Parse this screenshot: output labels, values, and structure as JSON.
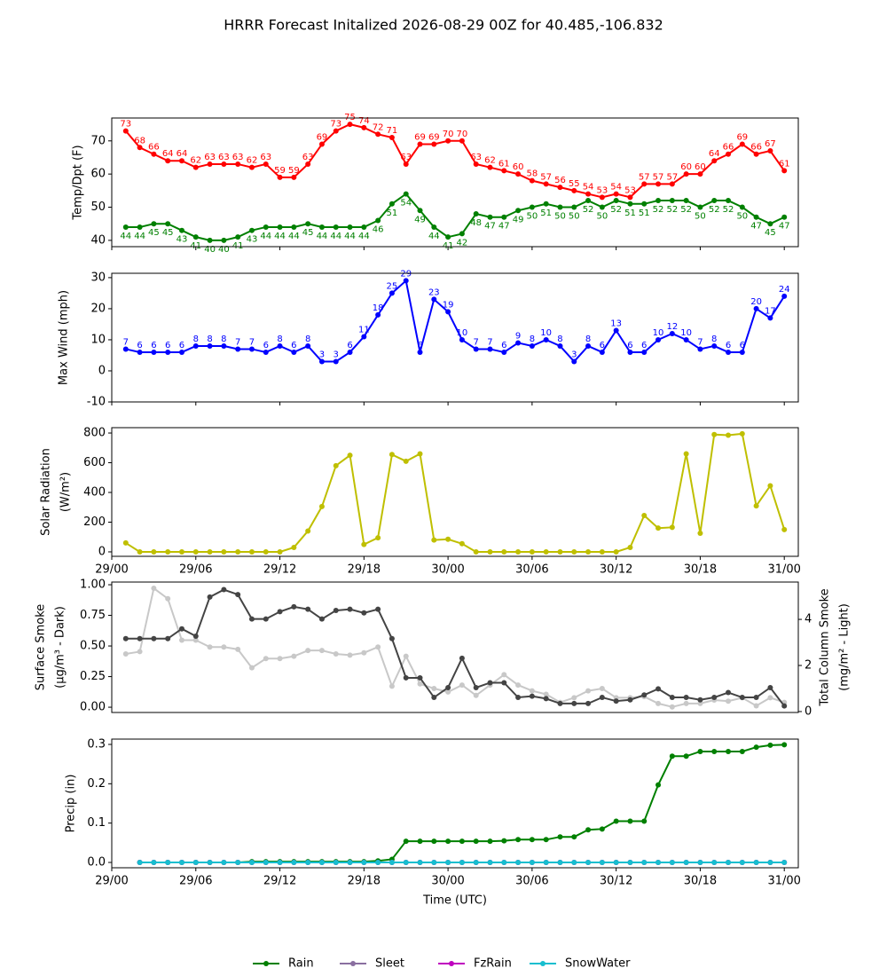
{
  "title": "HRRR Forecast Initalized 2026-08-29 00Z for 40.485,-106.832",
  "chart_data": [
    {
      "type": "line",
      "ylabel": [
        "Temp/Dpt (F)"
      ],
      "x": [
        1,
        2,
        3,
        4,
        5,
        6,
        7,
        8,
        9,
        10,
        11,
        12,
        13,
        14,
        15,
        16,
        17,
        18,
        19,
        20,
        21,
        22,
        23,
        24,
        25,
        26,
        27,
        28,
        29,
        30,
        31,
        32,
        33,
        34,
        35,
        36,
        37,
        38,
        39,
        40,
        41,
        42,
        43,
        44,
        45,
        46,
        47,
        48
      ],
      "xlim": [
        0,
        49
      ],
      "ylim": [
        38.1,
        76.9
      ],
      "yticks": [
        40,
        50,
        60,
        70
      ],
      "series": [
        {
          "color": "#ff0000",
          "data_labels": "above",
          "values": [
            73,
            68,
            66,
            64,
            64,
            62,
            63,
            63,
            63,
            62,
            63,
            59,
            59,
            63,
            69,
            73,
            75,
            74,
            72,
            71,
            63,
            69,
            69,
            70,
            70,
            63,
            62,
            61,
            60,
            58,
            57,
            56,
            55,
            54,
            53,
            54,
            53,
            57,
            57,
            57,
            60,
            60,
            64,
            66,
            69,
            66,
            67,
            61
          ]
        },
        {
          "color": "#008000",
          "data_labels": "below",
          "values": [
            44,
            44,
            45,
            45,
            43,
            41,
            40,
            40,
            41,
            43,
            44,
            44,
            44,
            45,
            44,
            44,
            44,
            44,
            46,
            51,
            54,
            49,
            44,
            41,
            42,
            48,
            47,
            47,
            49,
            50,
            51,
            50,
            50,
            52,
            50,
            52,
            51,
            51,
            52,
            52,
            52,
            50,
            52,
            52,
            50,
            47,
            45,
            47
          ]
        }
      ]
    },
    {
      "type": "line",
      "ylabel": [
        "Max Wind (mph)"
      ],
      "x": [
        1,
        2,
        3,
        4,
        5,
        6,
        7,
        8,
        9,
        10,
        11,
        12,
        13,
        14,
        15,
        16,
        17,
        18,
        19,
        20,
        21,
        22,
        23,
        24,
        25,
        26,
        27,
        28,
        29,
        30,
        31,
        32,
        33,
        34,
        35,
        36,
        37,
        38,
        39,
        40,
        41,
        42,
        43,
        44,
        45,
        46,
        47,
        48
      ],
      "xlim": [
        0,
        49
      ],
      "ylim": [
        -10,
        31.4
      ],
      "yticks": [
        -10,
        0,
        10,
        20,
        30
      ],
      "series": [
        {
          "color": "#0000ff",
          "data_labels": "above",
          "values": [
            7,
            6,
            6,
            6,
            6,
            8,
            8,
            8,
            7,
            7,
            6,
            8,
            6,
            8,
            3,
            3,
            6,
            11,
            18,
            25,
            29,
            6,
            23,
            19,
            10,
            7,
            7,
            6,
            9,
            8,
            10,
            8,
            3,
            8,
            6,
            13,
            6,
            6,
            10,
            12,
            10,
            7,
            8,
            6,
            6,
            20,
            17,
            24
          ]
        }
      ]
    },
    {
      "type": "line",
      "ylabel": [
        "Solar Radiation",
        "(W/m²)"
      ],
      "x": [
        1,
        2,
        3,
        4,
        5,
        6,
        7,
        8,
        9,
        10,
        11,
        12,
        13,
        14,
        15,
        16,
        17,
        18,
        19,
        20,
        21,
        22,
        23,
        24,
        25,
        26,
        27,
        28,
        29,
        30,
        31,
        32,
        33,
        34,
        35,
        36,
        37,
        38,
        39,
        40,
        41,
        42,
        43,
        44,
        45,
        46,
        47,
        48
      ],
      "xlim": [
        0,
        49
      ],
      "ylim": [
        -30,
        836
      ],
      "yticks": [
        0,
        200,
        400,
        600,
        800
      ],
      "xticks": [
        {
          "value": 0,
          "label": "29/00"
        },
        {
          "value": 6,
          "label": "29/06"
        },
        {
          "value": 12,
          "label": "29/12"
        },
        {
          "value": 18,
          "label": "29/18"
        },
        {
          "value": 24,
          "label": "30/00"
        },
        {
          "value": 30,
          "label": "30/06"
        },
        {
          "value": 36,
          "label": "30/12"
        },
        {
          "value": 42,
          "label": "30/18"
        },
        {
          "value": 48,
          "label": "31/00"
        }
      ],
      "series": [
        {
          "color": "#bfbf00",
          "values": [
            60,
            0,
            0,
            0,
            0,
            0,
            0,
            0,
            0,
            0,
            0,
            0,
            30,
            140,
            305,
            580,
            650,
            50,
            95,
            655,
            610,
            660,
            80,
            85,
            55,
            0,
            0,
            0,
            0,
            0,
            0,
            0,
            0,
            0,
            0,
            0,
            30,
            245,
            160,
            165,
            660,
            125,
            790,
            785,
            795,
            310,
            445,
            150
          ]
        }
      ]
    },
    {
      "type": "line",
      "ylabel": [
        "Surface Smoke",
        "(μg/m³ - Dark)"
      ],
      "y2label": [
        "Total Column Smoke",
        "(mg/m² - Light)"
      ],
      "x": [
        1,
        2,
        3,
        4,
        5,
        6,
        7,
        8,
        9,
        10,
        11,
        12,
        13,
        14,
        15,
        16,
        17,
        18,
        19,
        20,
        21,
        22,
        23,
        24,
        25,
        26,
        27,
        28,
        29,
        30,
        31,
        32,
        33,
        34,
        35,
        36,
        37,
        38,
        39,
        40,
        41,
        42,
        43,
        44,
        45,
        46,
        47,
        48
      ],
      "xlim": [
        0,
        49
      ],
      "ylim": [
        -0.043,
        1.022
      ],
      "yticks": [
        {
          "value": 0,
          "label": "0.00"
        },
        0.25,
        {
          "value": 0.5,
          "label": "0.50"
        },
        0.75,
        {
          "value": 1,
          "label": "1.00"
        }
      ],
      "y2lim": [
        -0.04,
        5.62
      ],
      "y2ticks": [
        0,
        2,
        4
      ],
      "series": [
        {
          "color": "#c8c8c8",
          "axis": "y2",
          "values": [
            2.5,
            2.6,
            5.35,
            4.9,
            3.1,
            3.1,
            2.8,
            2.8,
            2.7,
            1.9,
            2.3,
            2.3,
            2.4,
            2.65,
            2.65,
            2.5,
            2.45,
            2.55,
            2.8,
            1.1,
            2.4,
            1.2,
            1.0,
            0.85,
            1.15,
            0.7,
            1.15,
            1.6,
            1.15,
            0.9,
            0.75,
            0.4,
            0.6,
            0.9,
            1.0,
            0.6,
            0.6,
            0.65,
            0.35,
            0.2,
            0.35,
            0.35,
            0.5,
            0.45,
            0.6,
            0.25,
            0.6,
            0.4
          ]
        },
        {
          "color": "#444444",
          "values": [
            0.56,
            0.56,
            0.56,
            0.56,
            0.64,
            0.58,
            0.9,
            0.96,
            0.92,
            0.72,
            0.72,
            0.78,
            0.82,
            0.8,
            0.72,
            0.79,
            0.8,
            0.77,
            0.8,
            0.56,
            0.24,
            0.24,
            0.08,
            0.16,
            0.4,
            0.16,
            0.2,
            0.2,
            0.08,
            0.09,
            0.07,
            0.03,
            0.03,
            0.03,
            0.08,
            0.05,
            0.06,
            0.1,
            0.15,
            0.08,
            0.08,
            0.06,
            0.08,
            0.12,
            0.08,
            0.08,
            0.16,
            0.01
          ]
        }
      ]
    },
    {
      "type": "line",
      "ylabel": [
        "Precip (in)"
      ],
      "xlabel": "Time (UTC)",
      "legend": "bottom",
      "x": [
        1,
        2,
        3,
        4,
        5,
        6,
        7,
        8,
        9,
        10,
        11,
        12,
        13,
        14,
        15,
        16,
        17,
        18,
        19,
        20,
        21,
        22,
        23,
        24,
        25,
        26,
        27,
        28,
        29,
        30,
        31,
        32,
        33,
        34,
        35,
        36,
        37,
        38,
        39,
        40,
        41,
        42,
        43,
        44,
        45,
        46,
        47,
        48
      ],
      "xlim": [
        0,
        49
      ],
      "ylim": [
        -0.0135,
        0.3135
      ],
      "yticks": [
        {
          "value": 0,
          "label": "0.0"
        },
        0.1,
        0.2,
        0.3
      ],
      "xticks": [
        {
          "value": 0,
          "label": "29/00"
        },
        {
          "value": 6,
          "label": "29/06"
        },
        {
          "value": 12,
          "label": "29/12"
        },
        {
          "value": 18,
          "label": "29/18"
        },
        {
          "value": 24,
          "label": "30/00"
        },
        {
          "value": 30,
          "label": "30/06"
        },
        {
          "value": 36,
          "label": "30/12"
        },
        {
          "value": 42,
          "label": "30/18"
        },
        {
          "value": 48,
          "label": "31/00"
        }
      ],
      "series": [
        {
          "name": "Rain",
          "color": "#008000",
          "values": [
            null,
            0,
            0,
            0,
            0,
            0,
            0,
            0,
            0,
            0.002,
            0.002,
            0.002,
            0.002,
            0.002,
            0.002,
            0.002,
            0.002,
            0.002,
            0.004,
            0.008,
            0.054,
            0.054,
            0.054,
            0.054,
            0.054,
            0.054,
            0.054,
            0.055,
            0.058,
            0.058,
            0.058,
            0.065,
            0.065,
            0.083,
            0.085,
            0.105,
            0.105,
            0.105,
            0.197,
            0.27,
            0.27,
            0.282,
            0.282,
            0.282,
            0.282,
            0.293,
            0.298,
            0.299
          ]
        },
        {
          "name": "Sleet",
          "color": "#8a6fa0",
          "values": [
            null,
            0,
            0,
            0,
            0,
            0,
            0,
            0,
            0,
            0,
            0,
            0,
            0,
            0,
            0,
            0,
            0,
            0,
            0,
            0,
            0,
            0,
            0,
            0,
            0,
            0,
            0,
            0,
            0,
            0,
            0,
            0,
            0,
            0,
            0,
            0,
            0,
            0,
            0,
            0,
            0,
            0,
            0,
            0,
            0,
            0,
            0,
            0
          ]
        },
        {
          "name": "FzRain",
          "color": "#bf00bf",
          "values": [
            null,
            0,
            0,
            0,
            0,
            0,
            0,
            0,
            0,
            0,
            0,
            0,
            0,
            0,
            0,
            0,
            0,
            0,
            0,
            0,
            0,
            0,
            0,
            0,
            0,
            0,
            0,
            0,
            0,
            0,
            0,
            0,
            0,
            0,
            0,
            0,
            0,
            0,
            0,
            0,
            0,
            0,
            0,
            0,
            0,
            0,
            0,
            0
          ]
        },
        {
          "name": "SnowWater",
          "color": "#17becf",
          "values": [
            null,
            0,
            0,
            0,
            0,
            0,
            0,
            0,
            0,
            0,
            0,
            0,
            0,
            0,
            0,
            0,
            0,
            0,
            0,
            0,
            0,
            0,
            0,
            0,
            0,
            0,
            0,
            0,
            0,
            0,
            0,
            0,
            0,
            0,
            0,
            0,
            0,
            0,
            0,
            0,
            0,
            0,
            0,
            0,
            0,
            0,
            0,
            0
          ]
        }
      ]
    }
  ]
}
